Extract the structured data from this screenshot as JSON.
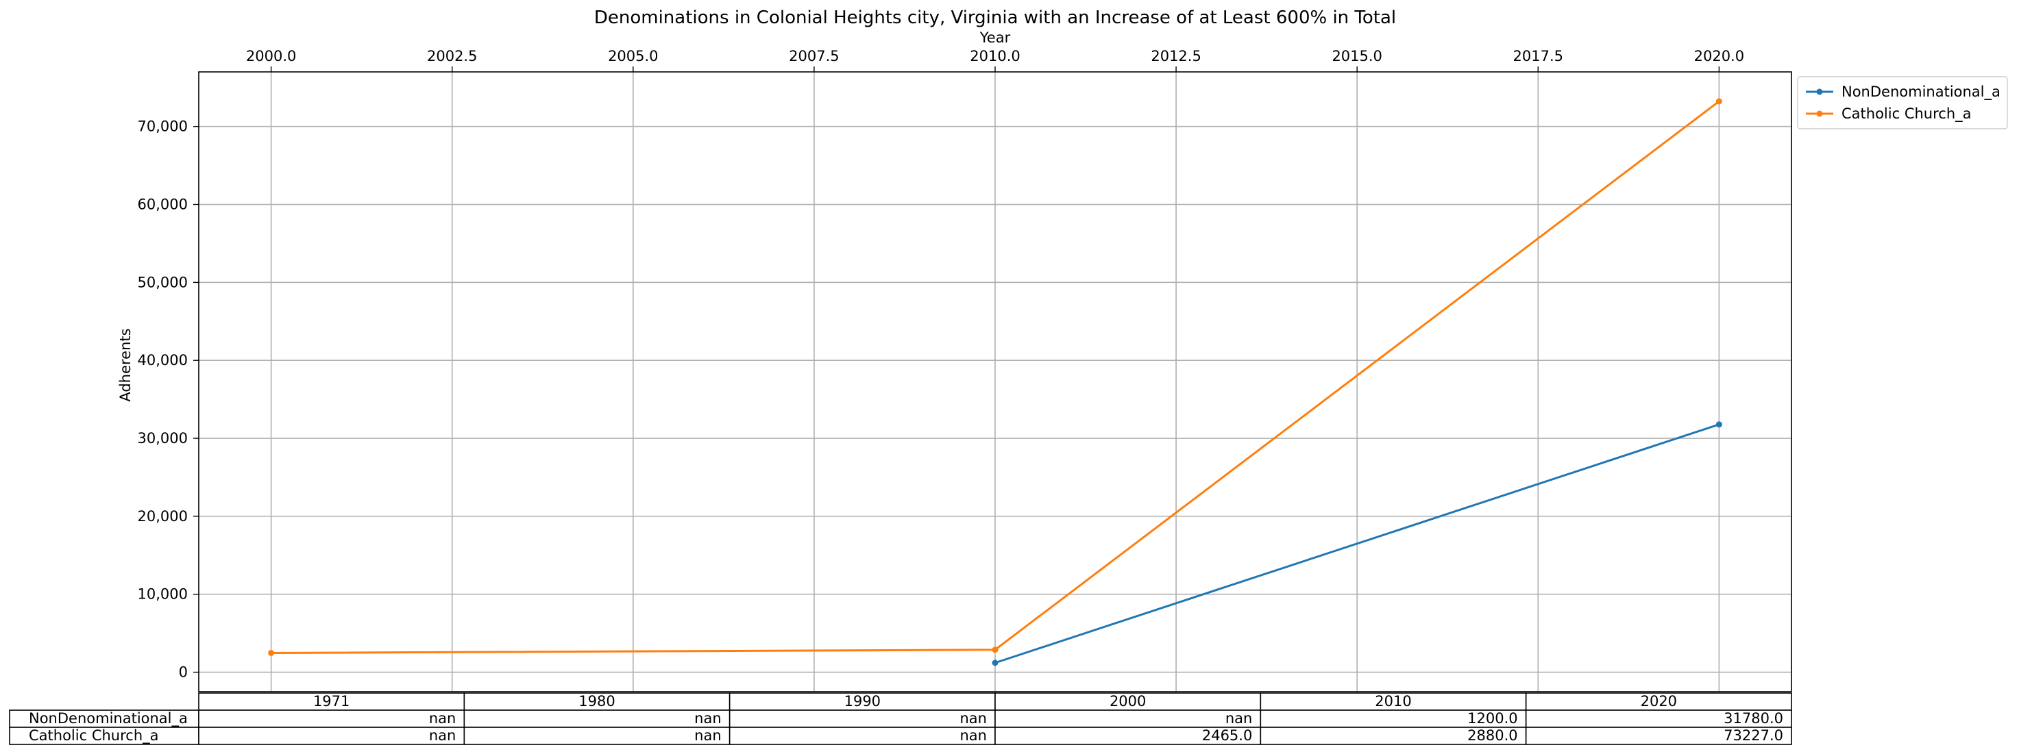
{
  "chart_data": {
    "type": "line",
    "title": "Denominations in Colonial Heights city, Virginia with an Increase of at Least 600% in Total",
    "xlabel": "Year",
    "ylabel": "Adherents",
    "xlim": [
      1999.0,
      2021.0
    ],
    "ylim": [
      -2500,
      77000
    ],
    "x_ticks": [
      2000.0,
      2002.5,
      2005.0,
      2007.5,
      2010.0,
      2012.5,
      2015.0,
      2017.5,
      2020.0
    ],
    "x_tick_labels": [
      "2000.0",
      "2002.5",
      "2005.0",
      "2007.5",
      "2010.0",
      "2012.5",
      "2015.0",
      "2017.5",
      "2020.0"
    ],
    "y_ticks": [
      0,
      10000,
      20000,
      30000,
      40000,
      50000,
      60000,
      70000
    ],
    "y_tick_labels": [
      "0",
      "10,000",
      "20,000",
      "30,000",
      "40,000",
      "50,000",
      "60,000",
      "70,000"
    ],
    "x_axis_position": "top",
    "grid": true,
    "legend_position": "outside top-right",
    "series": [
      {
        "name": "NonDenominational_a",
        "color": "#1f77b4",
        "x": [
          2010,
          2020
        ],
        "y": [
          1200.0,
          31780.0
        ]
      },
      {
        "name": "Catholic Church_a",
        "color": "#ff7f0e",
        "x": [
          2000,
          2010,
          2020
        ],
        "y": [
          2465.0,
          2880.0,
          73227.0
        ]
      }
    ],
    "table": {
      "columns": [
        "1971",
        "1980",
        "1990",
        "2000",
        "2010",
        "2020"
      ],
      "rows": [
        {
          "label": "NonDenominational_a",
          "cells": [
            "nan",
            "nan",
            "nan",
            "nan",
            "1200.0",
            "31780.0"
          ]
        },
        {
          "label": "Catholic Church_a",
          "cells": [
            "nan",
            "nan",
            "nan",
            "2465.0",
            "2880.0",
            "73227.0"
          ]
        }
      ]
    }
  }
}
